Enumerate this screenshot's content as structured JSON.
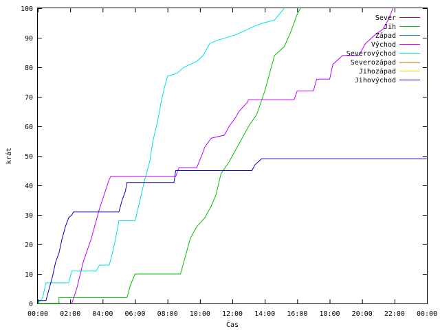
{
  "chart_data": {
    "type": "line",
    "xlabel": "Čas",
    "ylabel": "krát",
    "xlim": [
      0,
      24
    ],
    "ylim": [
      0,
      100
    ],
    "x_ticks": [
      {
        "value": 0,
        "label": "00:00"
      },
      {
        "value": 2,
        "label": "02:00"
      },
      {
        "value": 4,
        "label": "04:00"
      },
      {
        "value": 6,
        "label": "06:00"
      },
      {
        "value": 8,
        "label": "08:00"
      },
      {
        "value": 10,
        "label": "10:00"
      },
      {
        "value": 12,
        "label": "12:00"
      },
      {
        "value": 14,
        "label": "14:00"
      },
      {
        "value": 16,
        "label": "16:00"
      },
      {
        "value": 18,
        "label": "18:00"
      },
      {
        "value": 20,
        "label": "20:00"
      },
      {
        "value": 22,
        "label": "22:00"
      },
      {
        "value": 24,
        "label": "00:00"
      }
    ],
    "y_ticks": [
      0,
      10,
      20,
      30,
      40,
      50,
      60,
      70,
      80,
      90,
      100
    ],
    "grid": false,
    "legend_position": "top-right",
    "series": [
      {
        "name": "Sever",
        "color": "#ff0000",
        "points": []
      },
      {
        "name": "Jih",
        "color": "#00c000",
        "points": [
          [
            0,
            0
          ],
          [
            1.3,
            0
          ],
          [
            1.3,
            2
          ],
          [
            5.5,
            2
          ],
          [
            5.7,
            6
          ],
          [
            6.0,
            10
          ],
          [
            8.8,
            10
          ],
          [
            9.0,
            14
          ],
          [
            9.4,
            22
          ],
          [
            9.8,
            26
          ],
          [
            10.3,
            29
          ],
          [
            10.7,
            33
          ],
          [
            11.0,
            37
          ],
          [
            11.3,
            44
          ],
          [
            11.8,
            48
          ],
          [
            12.2,
            52
          ],
          [
            12.6,
            56
          ],
          [
            13.0,
            60
          ],
          [
            13.5,
            64
          ],
          [
            14.0,
            72
          ],
          [
            14.3,
            78
          ],
          [
            14.6,
            84
          ],
          [
            15.2,
            87
          ],
          [
            15.6,
            92
          ],
          [
            16.0,
            98
          ],
          [
            16.2,
            100
          ]
        ]
      },
      {
        "name": "Západ",
        "color": "#0080ff",
        "points": []
      },
      {
        "name": "Východ",
        "color": "#c000ff",
        "points": [
          [
            2.1,
            0
          ],
          [
            2.4,
            5
          ],
          [
            2.8,
            14
          ],
          [
            3.3,
            22
          ],
          [
            3.8,
            32
          ],
          [
            4.1,
            37
          ],
          [
            4.4,
            42
          ],
          [
            4.5,
            43
          ],
          [
            8.5,
            43
          ],
          [
            8.7,
            46
          ],
          [
            9.8,
            46
          ],
          [
            10.1,
            50
          ],
          [
            10.3,
            53
          ],
          [
            10.7,
            56
          ],
          [
            11.5,
            57
          ],
          [
            11.8,
            60
          ],
          [
            12.2,
            63
          ],
          [
            12.4,
            65
          ],
          [
            12.9,
            68
          ],
          [
            13.0,
            69
          ],
          [
            15.8,
            69
          ],
          [
            16.0,
            72
          ],
          [
            17.0,
            72
          ],
          [
            17.2,
            76
          ],
          [
            18.0,
            76
          ],
          [
            18.2,
            81
          ],
          [
            18.8,
            84
          ],
          [
            19.8,
            84
          ],
          [
            20.2,
            88
          ],
          [
            20.8,
            91
          ],
          [
            21.3,
            93
          ],
          [
            21.7,
            97
          ],
          [
            21.9,
            100
          ]
        ]
      },
      {
        "name": "Severovýchod",
        "color": "#00e0e0",
        "points": [
          [
            0,
            0
          ],
          [
            0.3,
            2
          ],
          [
            0.5,
            7
          ],
          [
            1.9,
            7
          ],
          [
            2.1,
            11
          ],
          [
            3.6,
            11
          ],
          [
            3.8,
            13
          ],
          [
            4.4,
            13
          ],
          [
            4.6,
            17
          ],
          [
            4.8,
            22
          ],
          [
            5.0,
            28
          ],
          [
            6.0,
            28
          ],
          [
            6.3,
            35
          ],
          [
            6.6,
            42
          ],
          [
            6.9,
            48
          ],
          [
            7.1,
            55
          ],
          [
            7.4,
            62
          ],
          [
            7.6,
            68
          ],
          [
            7.8,
            73
          ],
          [
            8.0,
            77
          ],
          [
            8.6,
            78
          ],
          [
            9.0,
            80
          ],
          [
            9.8,
            82
          ],
          [
            10.2,
            84
          ],
          [
            10.6,
            88
          ],
          [
            11.0,
            89
          ],
          [
            12.2,
            91
          ],
          [
            12.6,
            92
          ],
          [
            13.4,
            94
          ],
          [
            13.9,
            95
          ],
          [
            14.6,
            96
          ],
          [
            15.2,
            100
          ]
        ]
      },
      {
        "name": "Severozápad",
        "color": "#c08000",
        "points": []
      },
      {
        "name": "Jihozápad",
        "color": "#e0e000",
        "points": []
      },
      {
        "name": "Jihovýchod",
        "color": "#0000c0",
        "points": [
          [
            0,
            1
          ],
          [
            0.5,
            1
          ],
          [
            0.6,
            3
          ],
          [
            0.9,
            9
          ],
          [
            1.1,
            14
          ],
          [
            1.3,
            17
          ],
          [
            1.5,
            22
          ],
          [
            1.7,
            26
          ],
          [
            1.9,
            29
          ],
          [
            2.1,
            30
          ],
          [
            2.2,
            31
          ],
          [
            5.0,
            31
          ],
          [
            5.2,
            35
          ],
          [
            5.4,
            38
          ],
          [
            5.5,
            41
          ],
          [
            8.4,
            41
          ],
          [
            8.5,
            45
          ],
          [
            13.2,
            45
          ],
          [
            13.4,
            47
          ],
          [
            13.8,
            49
          ],
          [
            24,
            49
          ]
        ]
      }
    ]
  }
}
